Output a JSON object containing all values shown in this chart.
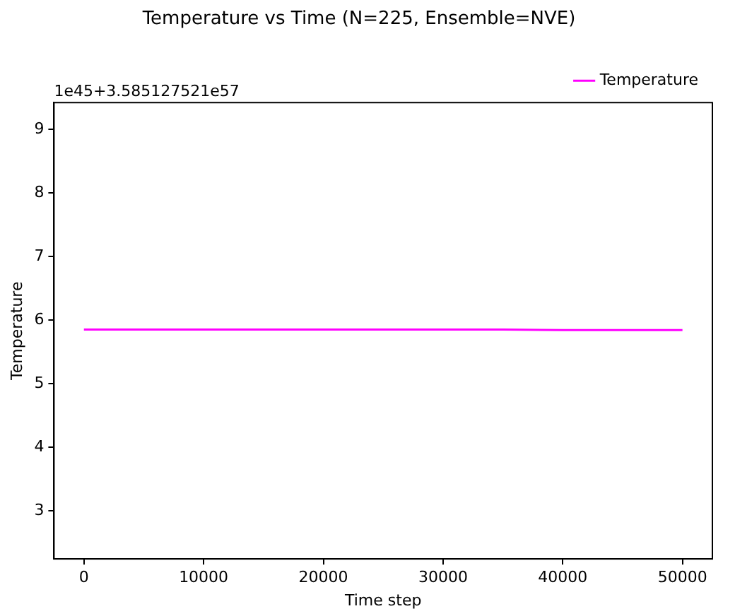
{
  "chart_data": {
    "type": "line",
    "title": "Temperature vs Time (N=225, Ensemble=NVE)",
    "xlabel": "Time step",
    "ylabel": "Temperature",
    "annotations": [
      "1e45+3.585127521e57"
    ],
    "x": [
      0,
      2000,
      5000,
      10000,
      15000,
      20000,
      25000,
      30000,
      35000,
      40000,
      45000,
      50000
    ],
    "series": [
      {
        "name": "Temperature",
        "color": "#ff00ff",
        "values": [
          5.85,
          5.85,
          5.85,
          5.85,
          5.85,
          5.85,
          5.85,
          5.85,
          5.85,
          5.84,
          5.84,
          5.84
        ]
      }
    ],
    "xlim": [
      -2500,
      52500
    ],
    "xticks": [
      0,
      10000,
      20000,
      30000,
      40000,
      50000
    ],
    "ylim": [
      2.24,
      9.42
    ],
    "yticks": [
      3,
      4,
      5,
      6,
      7,
      8,
      9
    ],
    "grid": false,
    "legend": "top right",
    "marker": "none",
    "line_style": "solid"
  }
}
